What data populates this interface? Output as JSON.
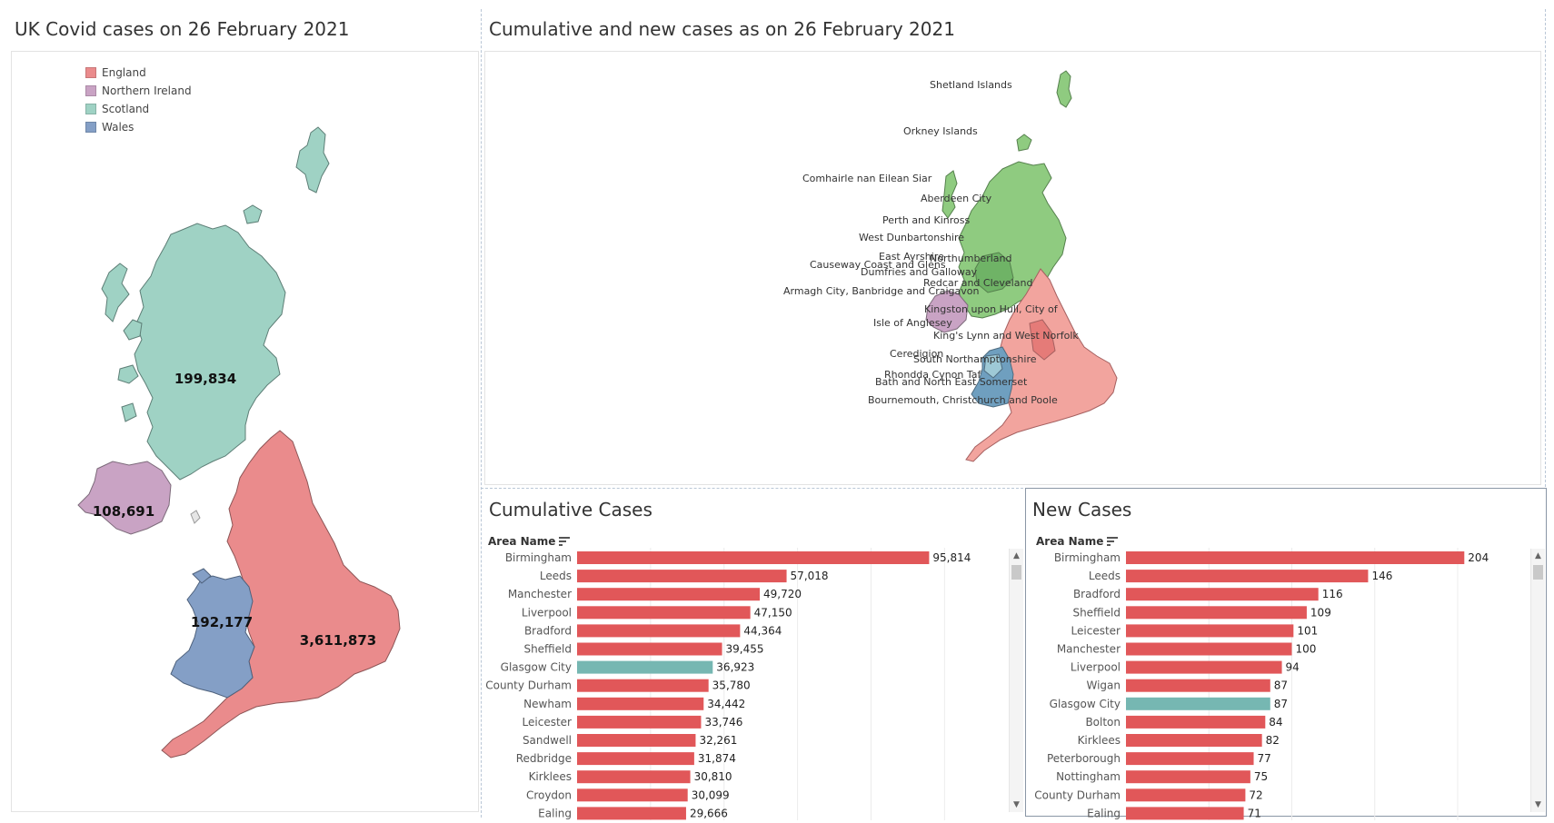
{
  "panels": {
    "left_title": "UK Covid cases on 26 February 2021",
    "top_right_title": "Cumulative and new cases as on 26 February 2021",
    "cumulative_title": "Cumulative Cases",
    "new_title": "New Cases",
    "area_header": "Area Name"
  },
  "legend": [
    {
      "label": "England",
      "color": "#ea8b8c"
    },
    {
      "label": "Northern Ireland",
      "color": "#c9a3c4"
    },
    {
      "label": "Scotland",
      "color": "#9fd2c4"
    },
    {
      "label": "Wales",
      "color": "#849fc6"
    }
  ],
  "country_totals": [
    {
      "country": "Scotland",
      "value": "199,834"
    },
    {
      "country": "Northern Ireland",
      "value": "108,691"
    },
    {
      "country": "Wales",
      "value": "192,177"
    },
    {
      "country": "England",
      "value": "3,611,873"
    }
  ],
  "map_labels": [
    "Shetland Islands",
    "Orkney Islands",
    "Comhairle nan Eilean Siar",
    "Aberdeen City",
    "Perth and Kinross",
    "West Dunbartonshire",
    "East Ayrshire",
    "Northumberland",
    "Causeway Coast and Glens",
    "Dumfries and Galloway",
    "Redcar and Cleveland",
    "Armagh City, Banbridge and Craigavon",
    "Kingston upon Hull, City of",
    "Isle of Anglesey",
    "King's Lynn and West Norfolk",
    "Ceredigion",
    "South Northamptonshire",
    "Rhondda Cynon Taf",
    "Bath and North East Somerset",
    "Bournemouth, Christchurch and Poole"
  ],
  "colors": {
    "bar_default": "#e15759",
    "bar_highlight": "#76b7b2"
  },
  "chart_data": [
    {
      "type": "bar",
      "orientation": "horizontal",
      "title": "Cumulative Cases",
      "categories": [
        "Birmingham",
        "Leeds",
        "Manchester",
        "Liverpool",
        "Bradford",
        "Sheffield",
        "Glasgow City",
        "County Durham",
        "Newham",
        "Leicester",
        "Sandwell",
        "Redbridge",
        "Kirklees",
        "Croydon",
        "Ealing"
      ],
      "values": [
        95814,
        57018,
        49720,
        47150,
        44364,
        39455,
        36923,
        35780,
        34442,
        33746,
        32261,
        31874,
        30810,
        30099,
        29666
      ],
      "labels": [
        "95,814",
        "57,018",
        "49,720",
        "47,150",
        "44,364",
        "39,455",
        "36,923",
        "35,780",
        "34,442",
        "33,746",
        "32,261",
        "31,874",
        "30,810",
        "30,099",
        "29,666"
      ],
      "highlight": [
        "Glasgow City"
      ],
      "xlim": [
        0,
        115000
      ],
      "grid": true
    },
    {
      "type": "bar",
      "orientation": "horizontal",
      "title": "New Cases",
      "categories": [
        "Birmingham",
        "Leeds",
        "Bradford",
        "Sheffield",
        "Leicester",
        "Manchester",
        "Liverpool",
        "Wigan",
        "Glasgow City",
        "Bolton",
        "Kirklees",
        "Peterborough",
        "Nottingham",
        "County Durham",
        "Ealing"
      ],
      "values": [
        204,
        146,
        116,
        109,
        101,
        100,
        94,
        87,
        87,
        84,
        82,
        77,
        75,
        72,
        71
      ],
      "labels": [
        "204",
        "146",
        "116",
        "109",
        "101",
        "100",
        "94",
        "87",
        "87",
        "84",
        "82",
        "77",
        "75",
        "72",
        "71"
      ],
      "highlight": [
        "Glasgow City"
      ],
      "xlim": [
        0,
        240
      ],
      "grid": true
    }
  ]
}
